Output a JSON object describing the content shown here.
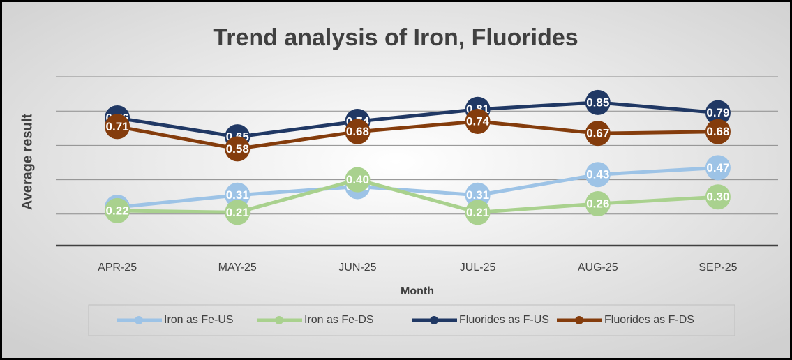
{
  "chart_data": {
    "type": "line",
    "title": "Trend analysis of Iron, Fluorides",
    "x_label": "Month",
    "y_label": "Average result",
    "categories": [
      "APR-25",
      "MAY-25",
      "JUN-25",
      "JUL-25",
      "AUG-25",
      "SEP-25"
    ],
    "ylim": [
      0,
      1.0
    ],
    "yticks": [
      0,
      0.2,
      0.4,
      0.6,
      0.8,
      1.0
    ],
    "grid": true,
    "legend": "bottom",
    "series": [
      {
        "name": "Iron as Fe-US",
        "color": "#9dc3e6",
        "values": [
          0.24,
          0.31,
          0.36,
          0.31,
          0.43,
          0.47
        ],
        "value_labels": [
          "0.24",
          "0.31",
          "0.36",
          "0.31",
          "0.43",
          "0.47"
        ]
      },
      {
        "name": "Iron as Fe-DS",
        "color": "#a9d18e",
        "values": [
          0.22,
          0.21,
          0.4,
          0.21,
          0.26,
          0.3
        ],
        "value_labels": [
          "0.22",
          "0.21",
          "0.40",
          "0.21",
          "0.26",
          "0.30"
        ]
      },
      {
        "name": "Fluorides as F-US",
        "color": "#203864",
        "values": [
          0.76,
          0.65,
          0.74,
          0.81,
          0.85,
          0.79
        ],
        "value_labels": [
          "0.76",
          "0.65",
          "0.74",
          "0.81",
          "0.85",
          "0.79"
        ]
      },
      {
        "name": "Fluorides as F-DS",
        "color": "#843c0c",
        "values": [
          0.71,
          0.58,
          0.68,
          0.74,
          0.67,
          0.68
        ],
        "value_labels": [
          "0.71",
          "0.58",
          "0.68",
          "0.74",
          "0.67",
          "0.68"
        ]
      }
    ]
  }
}
